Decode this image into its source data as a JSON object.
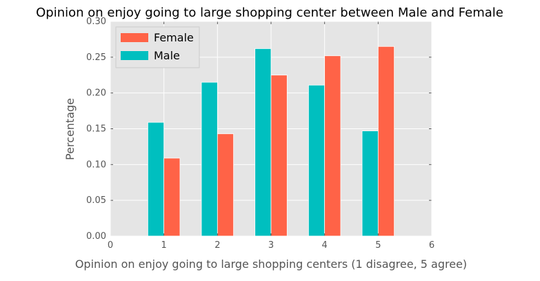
{
  "chart_data": {
    "type": "bar",
    "title": "Opinion on enjoy going to large shopping center between Male and Female",
    "xlabel": "Opinion on enjoy going to large shopping centers (1 disagree, 5 agree)",
    "ylabel": "Percentage",
    "xlim": [
      0,
      6
    ],
    "ylim": [
      0,
      0.3
    ],
    "xticks": [
      "0",
      "1",
      "2",
      "3",
      "4",
      "5",
      "6"
    ],
    "yticks": [
      "0.00",
      "0.05",
      "0.10",
      "0.15",
      "0.20",
      "0.25",
      "0.30"
    ],
    "grid": true,
    "legend_position": "top-left",
    "categories": [
      1,
      2,
      3,
      4,
      5
    ],
    "series": [
      {
        "name": "Female",
        "color": "#ff6347",
        "values": [
          0.109,
          0.143,
          0.225,
          0.252,
          0.265
        ]
      },
      {
        "name": "Male",
        "color": "#00bfbf",
        "values": [
          0.159,
          0.215,
          0.262,
          0.211,
          0.147
        ]
      }
    ]
  }
}
